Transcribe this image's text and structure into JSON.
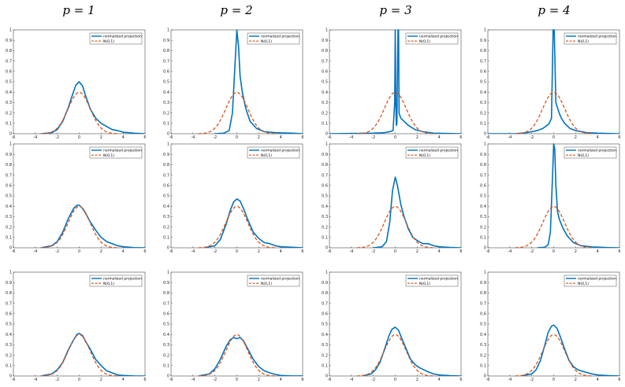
{
  "column_titles": [
    "p = 1",
    "p = 2",
    "p = 3",
    "p = 4"
  ],
  "colors": {
    "projection": "#0072BD",
    "normal": "#D95319",
    "axes": "#262626"
  },
  "chart_data": {
    "type": "line",
    "layout": {
      "rows": 3,
      "cols": 4
    },
    "xlim": [
      -6,
      6
    ],
    "ylim": [
      0,
      1
    ],
    "xticks": [
      -6,
      -4,
      -2,
      0,
      2,
      4,
      6
    ],
    "yticks": [
      0,
      0.1,
      0.2,
      0.3,
      0.4,
      0.5,
      0.6,
      0.7,
      0.8,
      0.9,
      1
    ],
    "legend": {
      "position": "top-right",
      "entries": [
        "normalized projection",
        "N(0,1)"
      ]
    },
    "reference_series": {
      "name": "N(0,1)",
      "style": "dashed",
      "function": "standard normal pdf",
      "x_range": [
        -3.5,
        3.5
      ]
    },
    "panels": [
      {
        "row": 1,
        "col": 1,
        "series": [
          {
            "name": "normalized projection",
            "x": [
              -3.5,
              -2.5,
              -2,
              -1.5,
              -1,
              -0.6,
              -0.3,
              0,
              0.3,
              0.6,
              1,
              1.5,
              2,
              2.5,
              3,
              3.5,
              4,
              5,
              6
            ],
            "y": [
              0,
              0.01,
              0.04,
              0.12,
              0.25,
              0.38,
              0.47,
              0.5,
              0.46,
              0.36,
              0.24,
              0.15,
              0.1,
              0.07,
              0.04,
              0.03,
              0.015,
              0.005,
              0
            ]
          }
        ]
      },
      {
        "row": 1,
        "col": 2,
        "series": [
          {
            "name": "normalized projection",
            "x": [
              -2,
              -1.2,
              -0.7,
              -0.4,
              -0.2,
              0,
              0.15,
              0.3,
              0.5,
              0.8,
              1.2,
              1.8,
              2.5,
              3.5,
              5,
              6
            ],
            "y": [
              0,
              0.005,
              0.03,
              0.2,
              0.6,
              1.0,
              0.85,
              0.55,
              0.4,
              0.25,
              0.12,
              0.05,
              0.02,
              0.01,
              0.005,
              0
            ]
          }
        ]
      },
      {
        "row": 1,
        "col": 3,
        "series": [
          {
            "name": "normalized projection",
            "x": [
              -6,
              -2,
              -1,
              -0.5,
              -0.2,
              -0.05,
              0,
              0.05,
              0.1,
              0.15,
              0.25,
              0.3,
              0.35,
              0.5,
              0.8,
              1.2,
              1.8,
              2.5,
              3.5,
              6
            ],
            "y": [
              0,
              0.005,
              0.01,
              0.02,
              0.03,
              0.3,
              1.0,
              0.3,
              0.08,
              0.1,
              1.0,
              1.0,
              0.2,
              0.15,
              0.12,
              0.08,
              0.04,
              0.02,
              0.005,
              0
            ]
          }
        ]
      },
      {
        "row": 1,
        "col": 4,
        "series": [
          {
            "name": "normalized projection",
            "x": [
              -6,
              -3.5,
              -2.5,
              -2,
              -1.5,
              -1,
              -0.6,
              -0.4,
              -0.2,
              -0.05,
              0.05,
              0.2,
              0.35,
              0.5,
              0.7,
              1,
              1.5,
              2,
              3,
              4,
              6
            ],
            "y": [
              0,
              0,
              0.01,
              0.02,
              0.03,
              0.05,
              0.08,
              0.1,
              0.15,
              1.0,
              1.0,
              0.3,
              0.25,
              0.2,
              0.15,
              0.1,
              0.05,
              0.03,
              0.01,
              0.005,
              0
            ]
          }
        ]
      },
      {
        "row": 2,
        "col": 1,
        "series": [
          {
            "name": "normalized projection",
            "x": [
              -3.5,
              -2.5,
              -2,
              -1.5,
              -1,
              -0.5,
              -0.2,
              0,
              0.3,
              0.6,
              1,
              1.5,
              2,
              2.5,
              3,
              3.5,
              4,
              5,
              6
            ],
            "y": [
              0,
              0.02,
              0.06,
              0.15,
              0.28,
              0.38,
              0.41,
              0.41,
              0.38,
              0.33,
              0.25,
              0.17,
              0.1,
              0.06,
              0.04,
              0.02,
              0.01,
              0.002,
              0
            ]
          }
        ]
      },
      {
        "row": 2,
        "col": 2,
        "series": [
          {
            "name": "normalized projection",
            "x": [
              -3,
              -2,
              -1.5,
              -1,
              -0.6,
              -0.3,
              0,
              0.3,
              0.6,
              1,
              1.5,
              2,
              2.5,
              3,
              3.5,
              4,
              5,
              6
            ],
            "y": [
              0,
              0.02,
              0.08,
              0.22,
              0.36,
              0.44,
              0.47,
              0.45,
              0.38,
              0.27,
              0.15,
              0.09,
              0.05,
              0.04,
              0.02,
              0.01,
              0.005,
              0
            ]
          }
        ]
      },
      {
        "row": 2,
        "col": 3,
        "series": [
          {
            "name": "normalized projection",
            "x": [
              -2,
              -1.2,
              -0.8,
              -0.5,
              -0.25,
              0,
              0.2,
              0.5,
              0.8,
              1.2,
              1.6,
              2,
              2.5,
              3,
              3.5,
              4,
              5,
              6
            ],
            "y": [
              0,
              0.01,
              0.06,
              0.25,
              0.55,
              0.68,
              0.6,
              0.42,
              0.3,
              0.18,
              0.1,
              0.07,
              0.04,
              0.04,
              0.02,
              0.01,
              0.003,
              0
            ]
          }
        ]
      },
      {
        "row": 2,
        "col": 4,
        "series": [
          {
            "name": "normalized projection",
            "x": [
              -1.5,
              -0.8,
              -0.5,
              -0.3,
              -0.1,
              0,
              0.1,
              0.2,
              0.35,
              0.5,
              0.8,
              1.2,
              1.8,
              2.5,
              3.5,
              5,
              6
            ],
            "y": [
              0,
              0.005,
              0.03,
              0.15,
              0.7,
              1.0,
              0.95,
              0.6,
              0.35,
              0.28,
              0.2,
              0.12,
              0.05,
              0.02,
              0.008,
              0.002,
              0
            ]
          }
        ]
      },
      {
        "row": 3,
        "col": 1,
        "series": [
          {
            "name": "normalized projection",
            "x": [
              -3.5,
              -2.5,
              -2,
              -1.5,
              -1,
              -0.5,
              -0.2,
              0,
              0.3,
              0.6,
              1,
              1.5,
              2,
              2.5,
              3,
              3.5,
              4,
              5,
              6
            ],
            "y": [
              0,
              0.02,
              0.06,
              0.13,
              0.25,
              0.35,
              0.4,
              0.41,
              0.39,
              0.33,
              0.26,
              0.16,
              0.1,
              0.05,
              0.03,
              0.01,
              0.005,
              0.001,
              0
            ]
          }
        ]
      },
      {
        "row": 3,
        "col": 2,
        "series": [
          {
            "name": "normalized projection",
            "x": [
              -3.5,
              -2.5,
              -2,
              -1.5,
              -1,
              -0.6,
              -0.3,
              0,
              0.3,
              0.6,
              1,
              1.5,
              2,
              2.5,
              3,
              3.5,
              4,
              5,
              6
            ],
            "y": [
              0,
              0.02,
              0.07,
              0.16,
              0.28,
              0.35,
              0.37,
              0.36,
              0.37,
              0.34,
              0.26,
              0.16,
              0.09,
              0.05,
              0.03,
              0.015,
              0.005,
              0.001,
              0
            ]
          }
        ]
      },
      {
        "row": 3,
        "col": 3,
        "series": [
          {
            "name": "normalized projection",
            "x": [
              -3,
              -2.2,
              -1.8,
              -1.4,
              -1,
              -0.6,
              -0.3,
              0,
              0.3,
              0.6,
              1,
              1.4,
              1.8,
              2.2,
              2.6,
              3,
              3.5,
              4,
              5,
              6
            ],
            "y": [
              0,
              0.02,
              0.06,
              0.13,
              0.25,
              0.38,
              0.45,
              0.47,
              0.44,
              0.36,
              0.26,
              0.16,
              0.11,
              0.08,
              0.06,
              0.04,
              0.02,
              0.01,
              0.003,
              0
            ]
          }
        ]
      },
      {
        "row": 3,
        "col": 4,
        "series": [
          {
            "name": "normalized projection",
            "x": [
              -3,
              -2,
              -1.6,
              -1.2,
              -0.8,
              -0.5,
              -0.2,
              0,
              0.3,
              0.6,
              1,
              1.4,
              1.8,
              2.2,
              2.8,
              3.5,
              4,
              5,
              6
            ],
            "y": [
              0,
              0.02,
              0.06,
              0.15,
              0.3,
              0.42,
              0.48,
              0.49,
              0.46,
              0.38,
              0.26,
              0.15,
              0.09,
              0.06,
              0.04,
              0.02,
              0.01,
              0.003,
              0
            ]
          }
        ]
      }
    ]
  }
}
